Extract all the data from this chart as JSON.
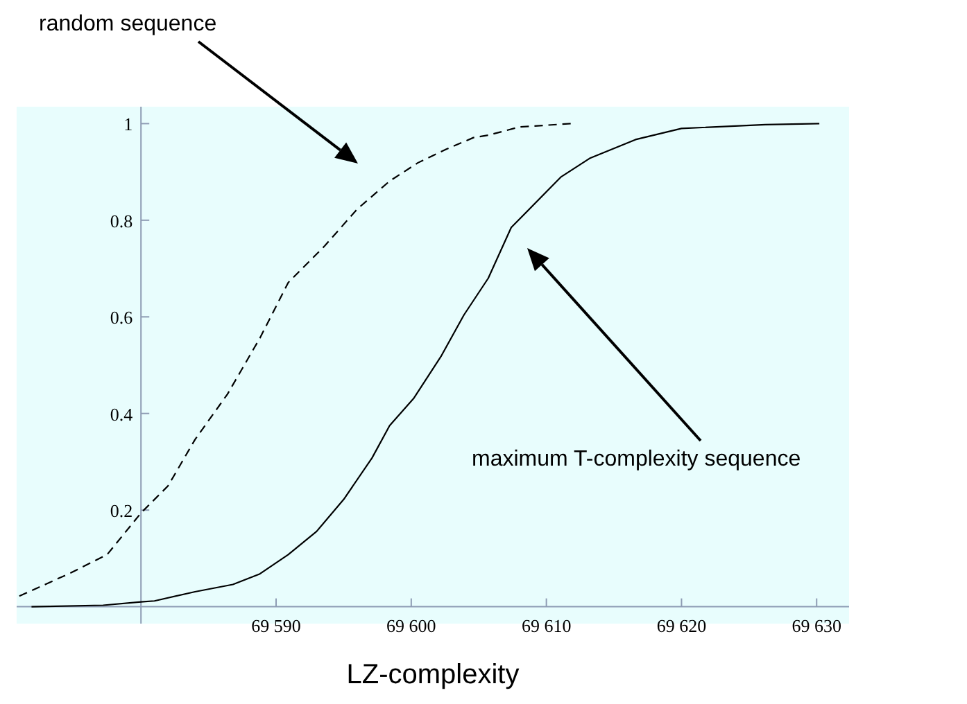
{
  "chart_data": {
    "type": "line",
    "xlabel": "LZ-complexity",
    "annotations": [
      "random sequence",
      "maximum T-complexity sequence"
    ],
    "xlim": [
      69570.8,
      69632.4
    ],
    "ylim": [
      -0.035,
      1.035
    ],
    "xticks": [
      {
        "value": 69590,
        "label": "69 590"
      },
      {
        "value": 69600,
        "label": "69 600"
      },
      {
        "value": 69610,
        "label": "69 610"
      },
      {
        "value": 69620,
        "label": "69 620"
      },
      {
        "value": 69630,
        "label": "69 630"
      }
    ],
    "yticks": [
      0.2,
      0.4,
      0.6,
      0.8,
      1
    ],
    "grid": false,
    "marker": "none",
    "series": [
      {
        "color": "#000000",
        "line_style": "dashed",
        "x": [
          69571.0,
          69574.8,
          69577.5,
          69580,
          69582,
          69584,
          69586.4,
          69588.8,
          69590.9,
          69593.6,
          69596,
          69598.4,
          69600.5,
          69602.6,
          69604.6,
          69605.7,
          69608,
          69611.8
        ],
        "values": [
          0.022,
          0.07,
          0.108,
          0.194,
          0.25,
          0.346,
          0.44,
          0.556,
          0.671,
          0.747,
          0.823,
          0.881,
          0.919,
          0.947,
          0.971,
          0.976,
          0.993,
          1.0
        ]
      },
      {
        "color": "#000000",
        "line_style": "solid",
        "x": [
          69571.9,
          69577.2,
          69580,
          69581,
          69584,
          69586.8,
          69588.8,
          69590.9,
          69593,
          69595,
          69597.1,
          69598.4,
          69600.2,
          69602.2,
          69603.9,
          69605.7,
          69607.4,
          69611.1,
          69613.2,
          69616.6,
          69620,
          69626.2,
          69630.2
        ],
        "values": [
          0.0,
          0.003,
          0.01,
          0.012,
          0.031,
          0.046,
          0.068,
          0.108,
          0.156,
          0.222,
          0.308,
          0.375,
          0.432,
          0.518,
          0.604,
          0.68,
          0.785,
          0.89,
          0.928,
          0.967,
          0.99,
          0.998,
          1.0
        ]
      }
    ]
  }
}
